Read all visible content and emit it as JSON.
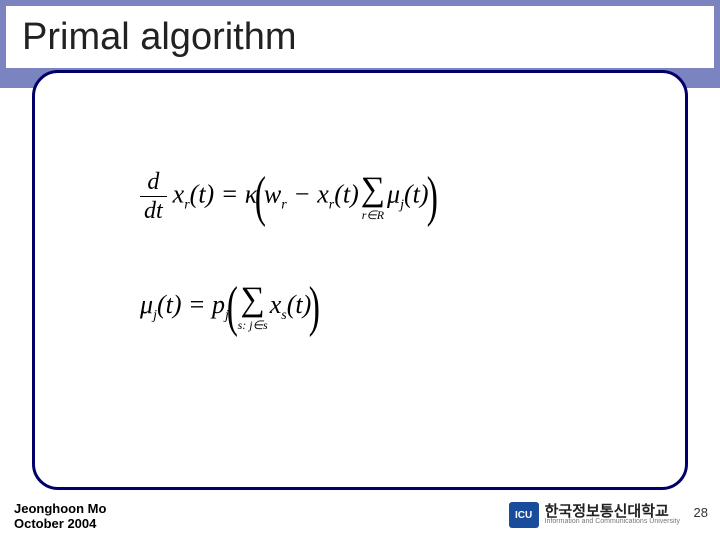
{
  "slide": {
    "title": "Primal algorithm",
    "header_band_color": "#7b83c0",
    "frame_border_color": "#000066",
    "title_fontsize": 38
  },
  "equations": {
    "eq1": {
      "lhs_frac_num": "d",
      "lhs_frac_den": "dt",
      "lhs_var": "x",
      "lhs_sub": "r",
      "lhs_arg": "(t)",
      "eq": " = ",
      "kappa": "κ",
      "w": "w",
      "w_sub": "r",
      "minus": " − ",
      "x2": "x",
      "x2_sub": "r",
      "x2_arg": "(t)",
      "sigma_sub": "r∈R",
      "mu": "μ",
      "mu_sub": "j",
      "mu_arg": "(t)"
    },
    "eq2": {
      "mu": "μ",
      "mu_sub": "j",
      "mu_arg": "(t)",
      "eq": " = ",
      "p": "p",
      "p_sub": "j",
      "sigma_sub": "s: j∈s",
      "x": "x",
      "x_sub": "s",
      "x_arg": "(t)"
    }
  },
  "footer": {
    "author": "Jeonghoon Mo",
    "date": "October 2004"
  },
  "page_number": "28",
  "logo": {
    "badge": "ICU",
    "korean": "한국정보통신대학교",
    "english": "Information and Communications University"
  }
}
